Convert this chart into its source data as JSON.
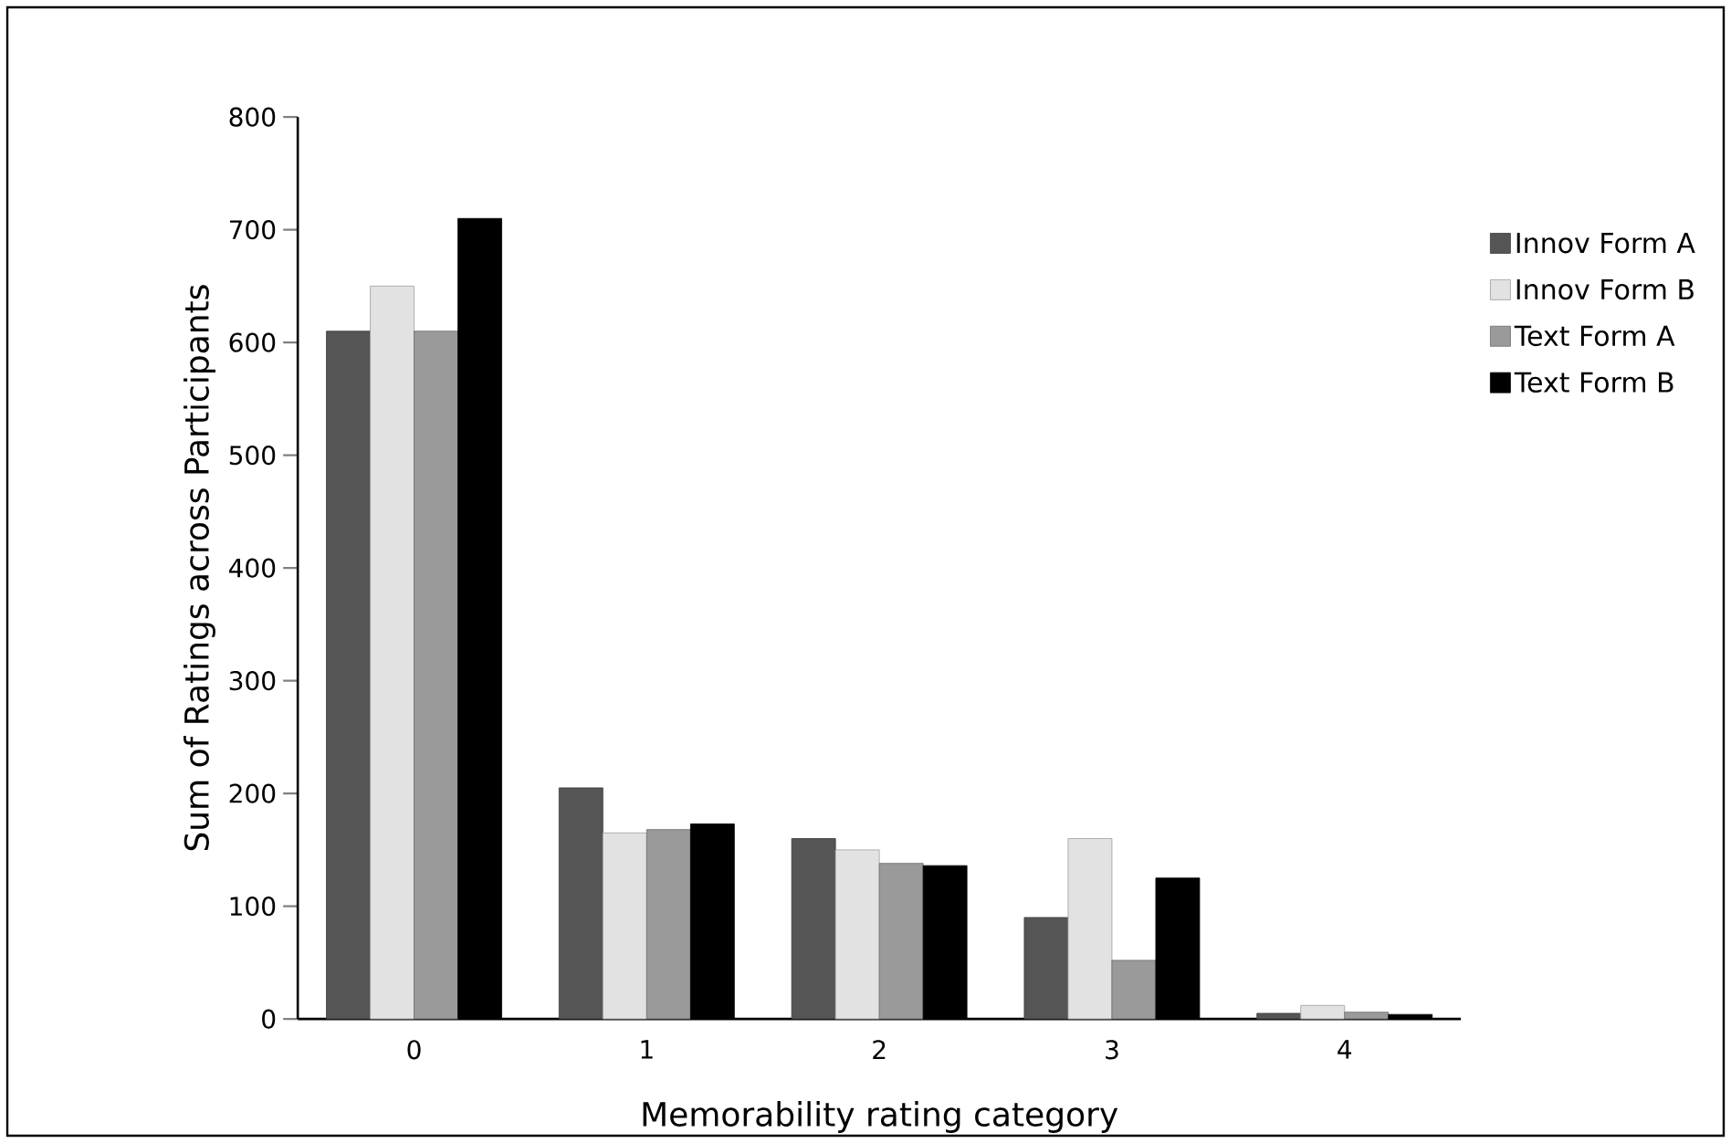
{
  "chart_data": {
    "type": "bar",
    "xlabel": "Memorability rating category",
    "ylabel": "Sum of Ratings across Participants",
    "categories": [
      "0",
      "1",
      "2",
      "3",
      "4"
    ],
    "series": [
      {
        "name": "Innov Form A",
        "color": "#555555",
        "values": [
          610,
          205,
          160,
          90,
          5
        ]
      },
      {
        "name": "Innov Form B",
        "color": "#e2e2e2",
        "values": [
          650,
          165,
          150,
          160,
          12
        ]
      },
      {
        "name": "Text Form A",
        "color": "#9a9a9a",
        "values": [
          610,
          168,
          138,
          52,
          6
        ]
      },
      {
        "name": "Text Form B",
        "color": "#000000",
        "values": [
          710,
          173,
          136,
          125,
          4
        ]
      }
    ],
    "ylim": [
      0,
      800
    ],
    "yticks": [
      0,
      100,
      200,
      300,
      400,
      500,
      600,
      700,
      800
    ],
    "legend": "right"
  }
}
